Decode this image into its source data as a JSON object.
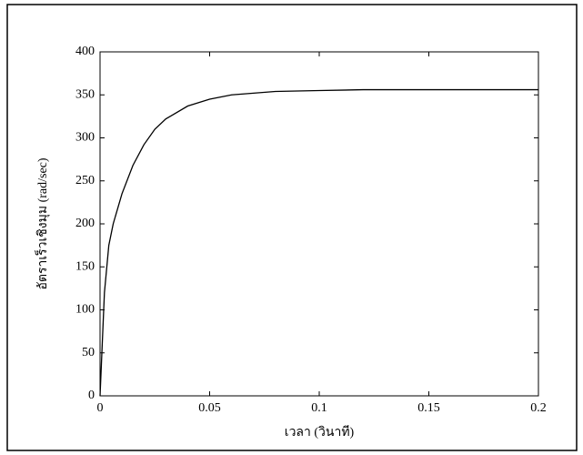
{
  "chart_data": {
    "type": "line",
    "xlabel": "เวลา (วินาที)",
    "ylabel": "อัตราเร็วเชิงมุม (rad/sec)",
    "x": [
      0,
      0.002,
      0.004,
      0.006,
      0.01,
      0.015,
      0.02,
      0.025,
      0.03,
      0.04,
      0.05,
      0.06,
      0.07,
      0.08,
      0.1,
      0.12,
      0.15,
      0.2
    ],
    "values": [
      0,
      120,
      175,
      200,
      235,
      268,
      292,
      310,
      322,
      337,
      345,
      350,
      352,
      354,
      355,
      356,
      356,
      356
    ],
    "color": "#000000",
    "xlim": [
      0,
      0.2
    ],
    "xticks": [
      0,
      0.05,
      0.1,
      0.15,
      0.2
    ],
    "ylim": [
      0,
      400
    ],
    "yticks": [
      0,
      50,
      100,
      150,
      200,
      250,
      300,
      350,
      400
    ],
    "grid": false
  }
}
